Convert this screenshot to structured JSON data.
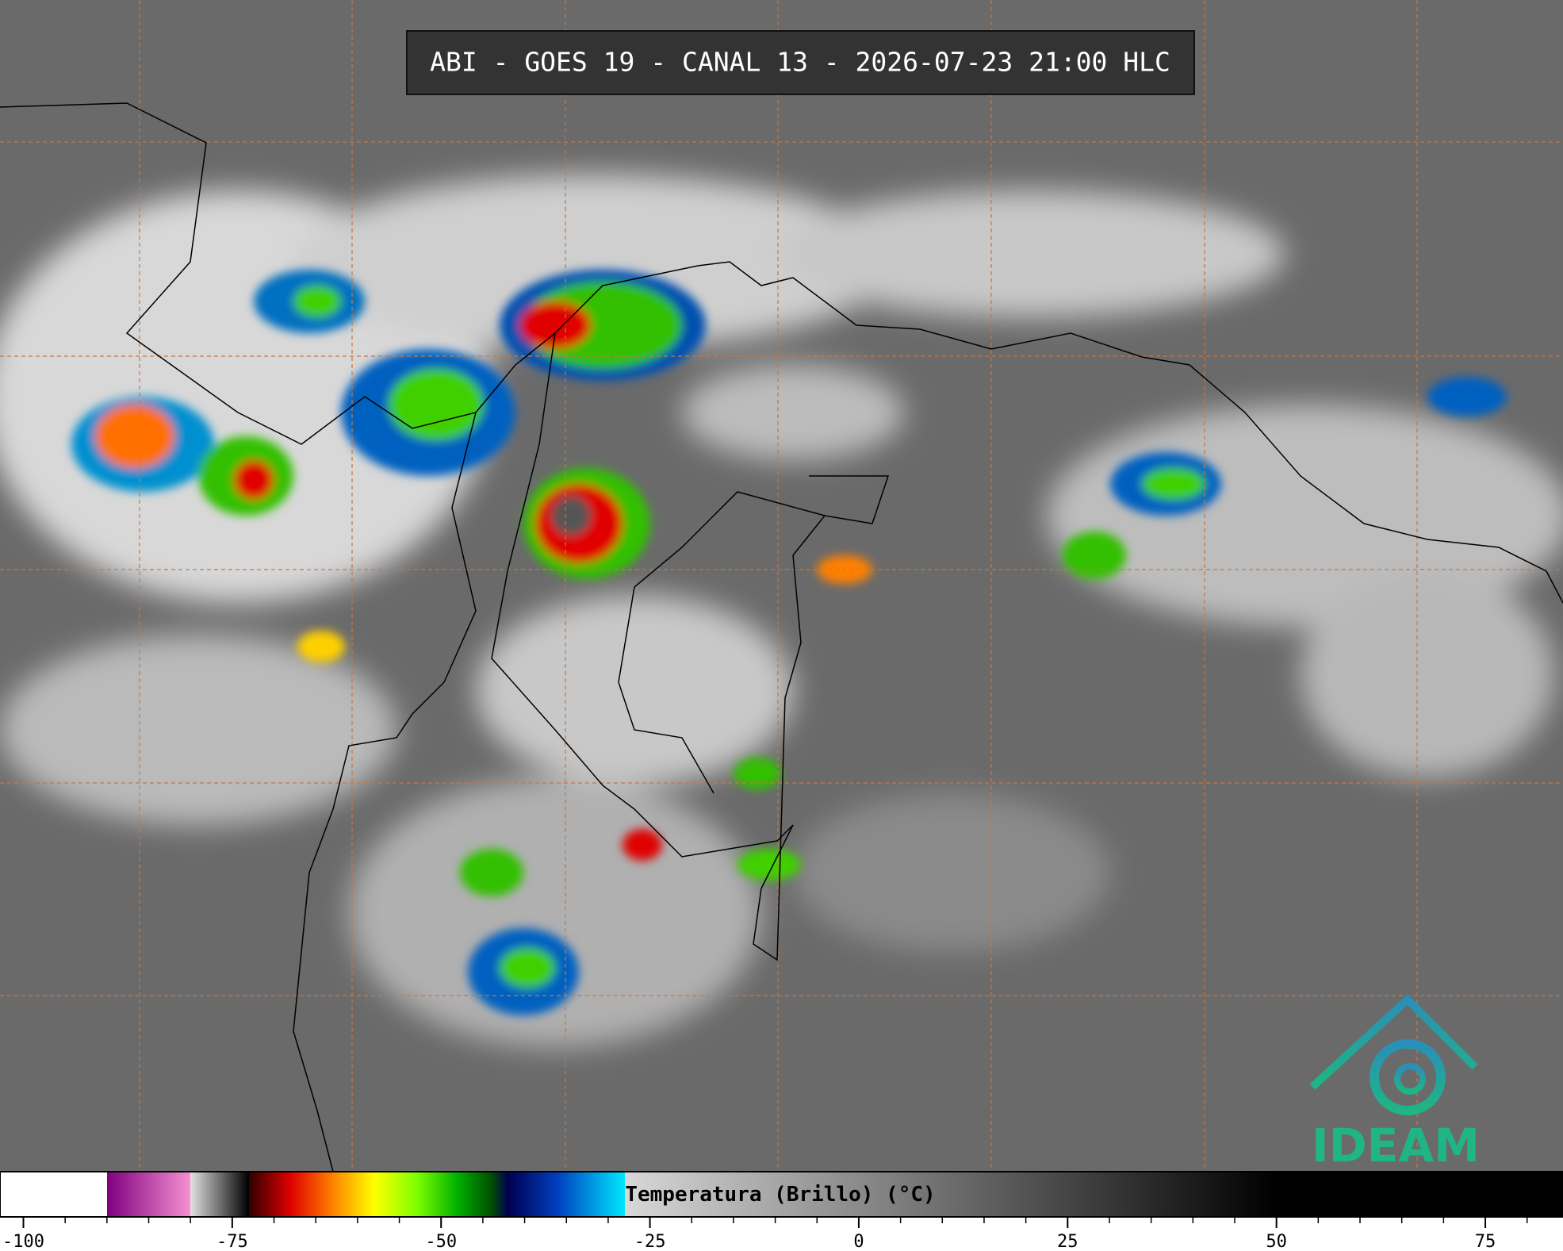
{
  "title": "ABI - GOES 19 - CANAL 13 - 2026-07-23 21:00 HLC",
  "colorbar": {
    "label": "Temperatura (Brillo) (°C)",
    "lim": [
      -102.8,
      84.3
    ],
    "ticks": [
      -100,
      -75,
      -50,
      -25,
      0,
      25,
      50,
      75
    ],
    "minor_per_major": 4,
    "color_stops": [
      {
        "value": -102.8,
        "color": "#ffffff"
      },
      {
        "value": -90,
        "color": "#ffffff"
      },
      {
        "value": -90,
        "color": "#800080"
      },
      {
        "value": -80,
        "color": "#f590d0"
      },
      {
        "value": -80,
        "color": "#e0e0e0"
      },
      {
        "value": -73,
        "color": "#000000"
      },
      {
        "value": -73,
        "color": "#300000"
      },
      {
        "value": -68,
        "color": "#e00000"
      },
      {
        "value": -63,
        "color": "#ff8000"
      },
      {
        "value": -58,
        "color": "#ffff00"
      },
      {
        "value": -53,
        "color": "#80ff00"
      },
      {
        "value": -48,
        "color": "#00b000"
      },
      {
        "value": -44,
        "color": "#005000"
      },
      {
        "value": -42,
        "color": "#000050"
      },
      {
        "value": -36,
        "color": "#0040c0"
      },
      {
        "value": -28,
        "color": "#00e8ff"
      },
      {
        "value": -28,
        "color": "#d8d8d8"
      },
      {
        "value": 50,
        "color": "#000000"
      },
      {
        "value": 84.3,
        "color": "#000000"
      }
    ]
  },
  "logo": "IDEAM"
}
